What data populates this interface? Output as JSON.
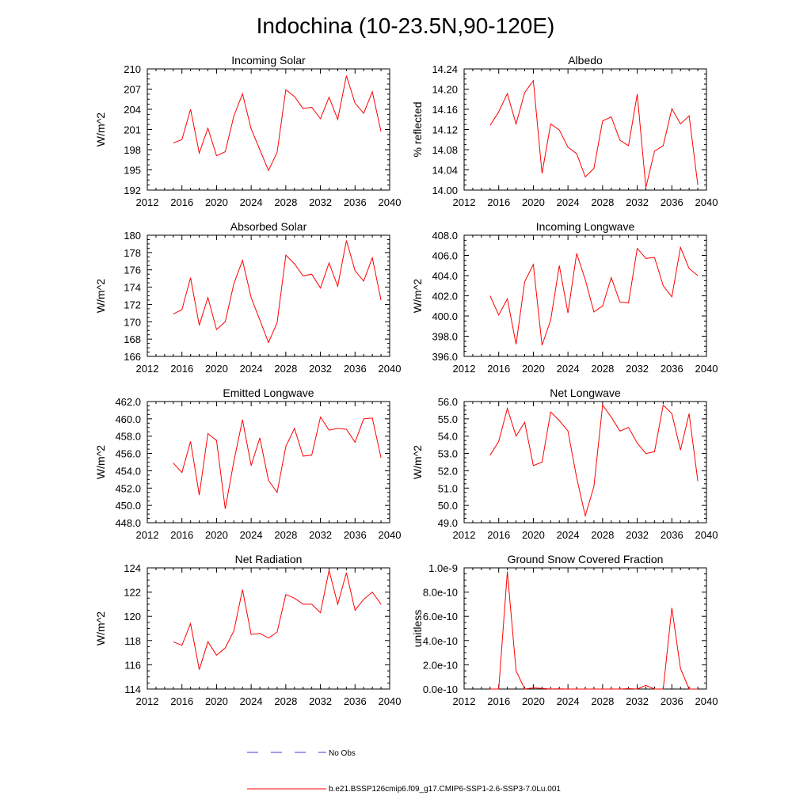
{
  "figure": {
    "title": "Indochina (10-23.5N,90-120E)"
  },
  "legend": {
    "obs_label": "No Obs",
    "model_label": "b.e21.BSSP126cmip6.f09_g17.CMIP6-SSP1-2.6-SSP3-7.0Lu.001",
    "obs_color": "#3a3ad0",
    "model_color": "#ff0000"
  },
  "chart_data": [
    {
      "type": "line",
      "title": "Incoming Solar",
      "ylabel": "W/m^2",
      "xlim": [
        2012,
        2040
      ],
      "ylim": [
        192,
        210
      ],
      "x_ticks": [
        2012,
        2016,
        2020,
        2024,
        2028,
        2032,
        2036,
        2040
      ],
      "x_tick_labels": [
        "2012",
        "2016",
        "2020",
        "2024",
        "2028",
        "2032",
        "2036",
        "2040"
      ],
      "y_ticks": [
        192,
        195,
        198,
        201,
        204,
        207,
        210
      ],
      "y_tick_labels": [
        "192",
        "195",
        "198",
        "201",
        "204",
        "207",
        "210"
      ],
      "x": [
        2015,
        2016,
        2017,
        2018,
        2019,
        2020,
        2021,
        2022,
        2023,
        2024,
        2025,
        2026,
        2027,
        2028,
        2029,
        2030,
        2031,
        2032,
        2033,
        2034,
        2035,
        2036,
        2037,
        2038,
        2039
      ],
      "y": [
        199.0,
        199.5,
        204.0,
        197.5,
        201.2,
        197.1,
        197.7,
        203.0,
        206.3,
        201.1,
        198.0,
        194.9,
        197.6,
        206.9,
        205.9,
        204.1,
        204.3,
        202.6,
        205.8,
        202.5,
        209.0,
        204.9,
        203.4,
        206.6,
        200.7
      ],
      "color": "#ff0000"
    },
    {
      "type": "line",
      "title": "Albedo",
      "ylabel": "% reflected",
      "xlim": [
        2012,
        2040
      ],
      "ylim": [
        14.0,
        14.24
      ],
      "x_ticks": [
        2012,
        2016,
        2020,
        2024,
        2028,
        2032,
        2036,
        2040
      ],
      "x_tick_labels": [
        "2012",
        "2016",
        "2020",
        "2024",
        "2028",
        "2032",
        "2036",
        "2040"
      ],
      "y_ticks": [
        14.0,
        14.04,
        14.08,
        14.12,
        14.16,
        14.2,
        14.24
      ],
      "y_tick_labels": [
        "14.00",
        "14.04",
        "14.08",
        "14.12",
        "14.16",
        "14.20",
        "14.24"
      ],
      "x": [
        2015,
        2016,
        2017,
        2018,
        2019,
        2020,
        2021,
        2022,
        2023,
        2024,
        2025,
        2026,
        2027,
        2028,
        2029,
        2030,
        2031,
        2032,
        2033,
        2034,
        2035,
        2036,
        2037,
        2038,
        2039
      ],
      "y": [
        14.128,
        14.155,
        14.191,
        14.131,
        14.193,
        14.217,
        14.033,
        14.131,
        14.119,
        14.085,
        14.072,
        14.026,
        14.043,
        14.137,
        14.145,
        14.099,
        14.088,
        14.19,
        14.005,
        14.077,
        14.088,
        14.161,
        14.131,
        14.147,
        14.01
      ],
      "color": "#ff0000"
    },
    {
      "type": "line",
      "title": "Absorbed Solar",
      "ylabel": "W/m^2",
      "xlim": [
        2012,
        2040
      ],
      "ylim": [
        166,
        180
      ],
      "x_ticks": [
        2012,
        2016,
        2020,
        2024,
        2028,
        2032,
        2036,
        2040
      ],
      "x_tick_labels": [
        "2012",
        "2016",
        "2020",
        "2024",
        "2028",
        "2032",
        "2036",
        "2040"
      ],
      "y_ticks": [
        166,
        168,
        170,
        172,
        174,
        176,
        178,
        180
      ],
      "y_tick_labels": [
        "166",
        "168",
        "170",
        "172",
        "174",
        "176",
        "178",
        "180"
      ],
      "x": [
        2015,
        2016,
        2017,
        2018,
        2019,
        2020,
        2021,
        2022,
        2023,
        2024,
        2025,
        2026,
        2027,
        2028,
        2029,
        2030,
        2031,
        2032,
        2033,
        2034,
        2035,
        2036,
        2037,
        2038,
        2039
      ],
      "y": [
        170.9,
        171.4,
        175.1,
        169.6,
        172.8,
        169.1,
        170.0,
        174.4,
        177.1,
        172.8,
        170.2,
        167.6,
        169.9,
        177.7,
        176.7,
        175.3,
        175.5,
        173.9,
        176.8,
        174.1,
        179.4,
        175.9,
        174.7,
        177.4,
        172.5
      ],
      "color": "#ff0000"
    },
    {
      "type": "line",
      "title": "Incoming Longwave",
      "ylabel": "W/m^2",
      "xlim": [
        2012,
        2040
      ],
      "ylim": [
        396.0,
        408.0
      ],
      "x_ticks": [
        2012,
        2016,
        2020,
        2024,
        2028,
        2032,
        2036,
        2040
      ],
      "x_tick_labels": [
        "2012",
        "2016",
        "2020",
        "2024",
        "2028",
        "2032",
        "2036",
        "2040"
      ],
      "y_ticks": [
        396,
        398,
        400,
        402,
        404,
        406,
        408
      ],
      "y_tick_labels": [
        "396.0",
        "398.0",
        "400.0",
        "402.0",
        "404.0",
        "406.0",
        "408.0"
      ],
      "x": [
        2015,
        2016,
        2017,
        2018,
        2019,
        2020,
        2021,
        2022,
        2023,
        2024,
        2025,
        2026,
        2027,
        2028,
        2029,
        2030,
        2031,
        2032,
        2033,
        2034,
        2035,
        2036,
        2037,
        2038,
        2039
      ],
      "y": [
        402.0,
        400.1,
        401.7,
        397.2,
        403.4,
        405.1,
        397.1,
        399.6,
        405.0,
        400.3,
        406.2,
        403.6,
        400.4,
        401.0,
        403.8,
        401.4,
        401.3,
        406.7,
        405.7,
        405.8,
        403.0,
        401.9,
        406.8,
        404.7,
        404.0
      ],
      "color": "#ff0000"
    },
    {
      "type": "line",
      "title": "Emitted Longwave",
      "ylabel": "W/m^2",
      "xlim": [
        2012,
        2040
      ],
      "ylim": [
        448.0,
        462.0
      ],
      "x_ticks": [
        2012,
        2016,
        2020,
        2024,
        2028,
        2032,
        2036,
        2040
      ],
      "x_tick_labels": [
        "2012",
        "2016",
        "2020",
        "2024",
        "2028",
        "2032",
        "2036",
        "2040"
      ],
      "y_ticks": [
        448,
        450,
        452,
        454,
        456,
        458,
        460,
        462
      ],
      "y_tick_labels": [
        "448.0",
        "450.0",
        "452.0",
        "454.0",
        "456.0",
        "458.0",
        "460.0",
        "462.0"
      ],
      "x": [
        2015,
        2016,
        2017,
        2018,
        2019,
        2020,
        2021,
        2022,
        2023,
        2024,
        2025,
        2026,
        2027,
        2028,
        2029,
        2030,
        2031,
        2032,
        2033,
        2034,
        2035,
        2036,
        2037,
        2038,
        2039
      ],
      "y": [
        454.9,
        453.8,
        457.4,
        451.2,
        458.3,
        457.5,
        449.6,
        455.1,
        459.9,
        454.6,
        457.8,
        452.9,
        451.5,
        456.8,
        458.9,
        455.7,
        455.8,
        460.2,
        458.7,
        458.9,
        458.8,
        457.3,
        460.0,
        460.1,
        455.5
      ],
      "color": "#ff0000"
    },
    {
      "type": "line",
      "title": "Net Longwave",
      "ylabel": "W/m^2",
      "xlim": [
        2012,
        2040
      ],
      "ylim": [
        49.0,
        56.0
      ],
      "x_ticks": [
        2012,
        2016,
        2020,
        2024,
        2028,
        2032,
        2036,
        2040
      ],
      "x_tick_labels": [
        "2012",
        "2016",
        "2020",
        "2024",
        "2028",
        "2032",
        "2036",
        "2040"
      ],
      "y_ticks": [
        49,
        50,
        51,
        52,
        53,
        54,
        55,
        56
      ],
      "y_tick_labels": [
        "49.0",
        "50.0",
        "51.0",
        "52.0",
        "53.0",
        "54.0",
        "55.0",
        "56.0"
      ],
      "x": [
        2015,
        2016,
        2017,
        2018,
        2019,
        2020,
        2021,
        2022,
        2023,
        2024,
        2025,
        2026,
        2027,
        2028,
        2029,
        2030,
        2031,
        2032,
        2033,
        2034,
        2035,
        2036,
        2037,
        2038,
        2039
      ],
      "y": [
        52.9,
        53.7,
        55.6,
        54.0,
        54.8,
        52.3,
        52.5,
        55.4,
        54.9,
        54.3,
        51.6,
        49.4,
        51.1,
        55.8,
        55.1,
        54.3,
        54.5,
        53.6,
        53.0,
        53.1,
        55.8,
        55.3,
        53.2,
        55.3,
        51.4
      ],
      "color": "#ff0000"
    },
    {
      "type": "line",
      "title": "Net Radiation",
      "ylabel": "W/m^2",
      "xlim": [
        2012,
        2040
      ],
      "ylim": [
        114,
        124
      ],
      "x_ticks": [
        2012,
        2016,
        2020,
        2024,
        2028,
        2032,
        2036,
        2040
      ],
      "x_tick_labels": [
        "2012",
        "2016",
        "2020",
        "2024",
        "2028",
        "2032",
        "2036",
        "2040"
      ],
      "y_ticks": [
        114,
        116,
        118,
        120,
        122,
        124
      ],
      "y_tick_labels": [
        "114",
        "116",
        "118",
        "120",
        "122",
        "124"
      ],
      "x": [
        2015,
        2016,
        2017,
        2018,
        2019,
        2020,
        2021,
        2022,
        2023,
        2024,
        2025,
        2026,
        2027,
        2028,
        2029,
        2030,
        2031,
        2032,
        2033,
        2034,
        2035,
        2036,
        2037,
        2038,
        2039
      ],
      "y": [
        117.9,
        117.6,
        119.4,
        115.6,
        117.9,
        116.8,
        117.4,
        118.8,
        122.2,
        118.5,
        118.6,
        118.2,
        118.7,
        121.8,
        121.5,
        121.0,
        121.0,
        120.3,
        123.8,
        121.0,
        123.6,
        120.5,
        121.4,
        122.0,
        121.0
      ],
      "color": "#ff0000"
    },
    {
      "type": "line",
      "title": "Ground Snow Covered Fraction",
      "ylabel": "unitless",
      "xlim": [
        2012,
        2040
      ],
      "ylim": [
        0,
        1e-09
      ],
      "x_ticks": [
        2012,
        2016,
        2020,
        2024,
        2028,
        2032,
        2036,
        2040
      ],
      "x_tick_labels": [
        "2012",
        "2016",
        "2020",
        "2024",
        "2028",
        "2032",
        "2036",
        "2040"
      ],
      "y_ticks": [
        0,
        2e-10,
        4e-10,
        6e-10,
        8e-10,
        1e-09
      ],
      "y_tick_labels": [
        "0.0e-10",
        "2.0e-10",
        "4.0e-10",
        "6.0e-10",
        "8.0e-10",
        "1.0e-9"
      ],
      "x": [
        2015,
        2016,
        2017,
        2018,
        2019,
        2020,
        2021,
        2022,
        2023,
        2024,
        2025,
        2026,
        2027,
        2028,
        2029,
        2030,
        2031,
        2032,
        2033,
        2034,
        2035,
        2036,
        2037,
        2038,
        2039
      ],
      "y": [
        0,
        0,
        9.7e-10,
        1.5e-10,
        0,
        1e-11,
        5e-12,
        0,
        2e-12,
        0,
        0,
        0,
        0,
        0,
        0,
        0,
        3e-12,
        0,
        3e-11,
        0,
        0,
        6.7e-10,
        1.7e-10,
        0,
        0
      ],
      "color": "#ff0000"
    }
  ]
}
